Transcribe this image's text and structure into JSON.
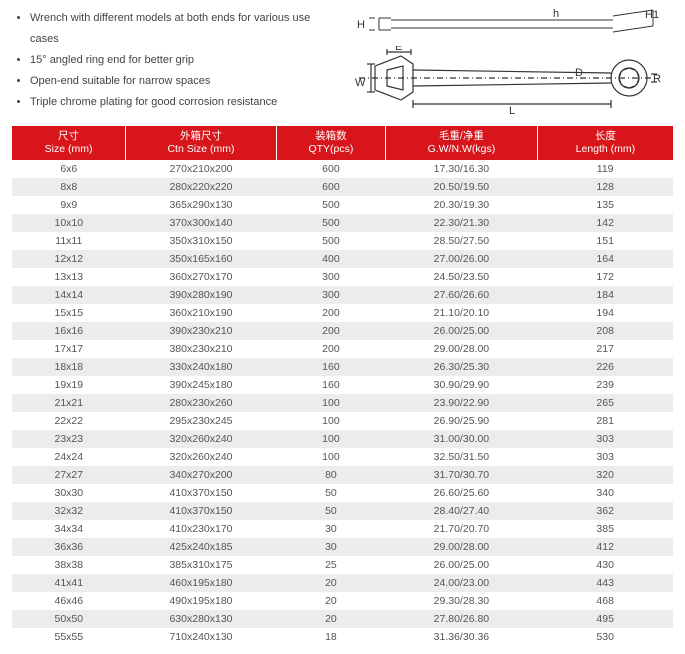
{
  "features": [
    "Wrench with different models at both ends for various use cases",
    "15° angled ring end for better grip",
    "Open-end suitable for narrow spaces",
    "Triple chrome plating for good corrosion resistance"
  ],
  "diagram_labels": {
    "H": "H",
    "h": "h",
    "H1": "H1",
    "E": "E",
    "W": "W",
    "D": "D",
    "L": "L",
    "R": "R"
  },
  "table": {
    "header_bg": "#d7151a",
    "header_fg": "#ffffff",
    "row_odd_bg": "#ffffff",
    "row_even_bg": "#ececec",
    "columns": [
      {
        "cn": "尺寸",
        "en": "Size (mm)"
      },
      {
        "cn": "外箱尺寸",
        "en": "Ctn Size (mm)"
      },
      {
        "cn": "装箱数",
        "en": "QTY(pcs)"
      },
      {
        "cn": "毛重/净重",
        "en": "G.W/N.W(kgs)"
      },
      {
        "cn": "长度",
        "en": "Length (mm)"
      }
    ],
    "rows": [
      [
        "6x6",
        "270x210x200",
        "600",
        "17.30/16.30",
        "119"
      ],
      [
        "8x8",
        "280x220x220",
        "600",
        "20.50/19.50",
        "128"
      ],
      [
        "9x9",
        "365x290x130",
        "500",
        "20.30/19.30",
        "135"
      ],
      [
        "10x10",
        "370x300x140",
        "500",
        "22.30/21.30",
        "142"
      ],
      [
        "11x11",
        "350x310x150",
        "500",
        "28.50/27.50",
        "151"
      ],
      [
        "12x12",
        "350x165x160",
        "400",
        "27.00/26.00",
        "164"
      ],
      [
        "13x13",
        "360x270x170",
        "300",
        "24.50/23.50",
        "172"
      ],
      [
        "14x14",
        "390x280x190",
        "300",
        "27.60/26.60",
        "184"
      ],
      [
        "15x15",
        "360x210x190",
        "200",
        "21.10/20.10",
        "194"
      ],
      [
        "16x16",
        "390x230x210",
        "200",
        "26.00/25.00",
        "208"
      ],
      [
        "17x17",
        "380x230x210",
        "200",
        "29.00/28.00",
        "217"
      ],
      [
        "18x18",
        "330x240x180",
        "160",
        "26.30/25.30",
        "226"
      ],
      [
        "19x19",
        "390x245x180",
        "160",
        "30.90/29.90",
        "239"
      ],
      [
        "21x21",
        "280x230x260",
        "100",
        "23.90/22.90",
        "265"
      ],
      [
        "22x22",
        "295x230x245",
        "100",
        "26.90/25.90",
        "281"
      ],
      [
        "23x23",
        "320x260x240",
        "100",
        "31.00/30.00",
        "303"
      ],
      [
        "24x24",
        "320x260x240",
        "100",
        "32.50/31.50",
        "303"
      ],
      [
        "27x27",
        "340x270x200",
        "80",
        "31.70/30.70",
        "320"
      ],
      [
        "30x30",
        "410x370x150",
        "50",
        "26.60/25.60",
        "340"
      ],
      [
        "32x32",
        "410x370x150",
        "50",
        "28.40/27.40",
        "362"
      ],
      [
        "34x34",
        "410x230x170",
        "30",
        "21.70/20.70",
        "385"
      ],
      [
        "36x36",
        "425x240x185",
        "30",
        "29.00/28.00",
        "412"
      ],
      [
        "38x38",
        "385x310x175",
        "25",
        "26.00/25.00",
        "430"
      ],
      [
        "41x41",
        "460x195x180",
        "20",
        "24.00/23.00",
        "443"
      ],
      [
        "46x46",
        "490x195x180",
        "20",
        "29.30/28.30",
        "468"
      ],
      [
        "50x50",
        "630x280x130",
        "20",
        "27.80/26.80",
        "495"
      ],
      [
        "55x55",
        "710x240x130",
        "18",
        "31.36/30.36",
        "530"
      ]
    ]
  }
}
